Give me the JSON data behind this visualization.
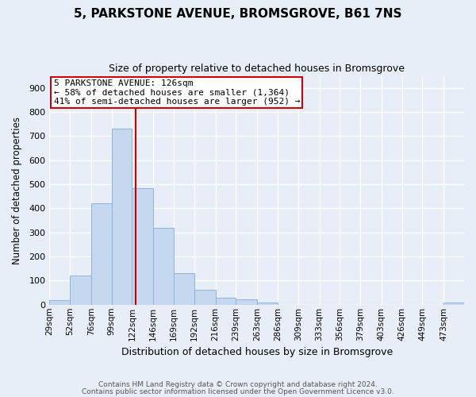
{
  "title1": "5, PARKSTONE AVENUE, BROMSGROVE, B61 7NS",
  "title2": "Size of property relative to detached houses in Bromsgrove",
  "xlabel": "Distribution of detached houses by size in Bromsgrove",
  "ylabel": "Number of detached properties",
  "bar_color": "#c5d8f0",
  "bar_edge_color": "#8ab4d8",
  "fig_bg_color": "#e8eef7",
  "ax_bg_color": "#e8eef7",
  "grid_color": "#ffffff",
  "vline_x": 126,
  "vline_color": "#cc0000",
  "bin_edges": [
    29,
    52,
    76,
    99,
    122,
    146,
    169,
    192,
    216,
    239,
    263,
    286,
    309,
    333,
    356,
    379,
    403,
    426,
    449,
    473,
    496
  ],
  "bin_counts": [
    20,
    122,
    420,
    730,
    483,
    318,
    132,
    63,
    30,
    22,
    10,
    0,
    0,
    0,
    0,
    0,
    0,
    0,
    0,
    8
  ],
  "ylim": [
    0,
    950
  ],
  "yticks": [
    0,
    100,
    200,
    300,
    400,
    500,
    600,
    700,
    800,
    900
  ],
  "annotation_title": "5 PARKSTONE AVENUE: 126sqm",
  "annotation_line1": "← 58% of detached houses are smaller (1,364)",
  "annotation_line2": "41% of semi-detached houses are larger (952) →",
  "annotation_box_color": "#ffffff",
  "annotation_border_color": "#cc0000",
  "footer1": "Contains HM Land Registry data © Crown copyright and database right 2024.",
  "footer2": "Contains public sector information licensed under the Open Government Licence v3.0."
}
